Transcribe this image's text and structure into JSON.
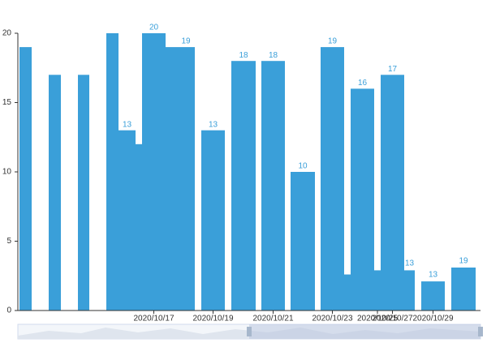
{
  "chart_data": {
    "type": "bar",
    "color": "#3a9fd9",
    "categories": [
      null,
      null,
      null,
      null,
      null,
      null,
      "2020/10/17",
      null,
      null,
      "2020/10/19",
      null,
      "2020/10/21",
      null,
      "2020/10/23",
      null,
      null,
      "2020/10/25",
      "2020/10/27",
      null,
      "2020/10/29",
      null
    ],
    "values": [
      19,
      17,
      17,
      20,
      13,
      12,
      20,
      19,
      19,
      13,
      18,
      18,
      10,
      19,
      2.6,
      16,
      2.9,
      17,
      2.9,
      2.1,
      3.1
    ],
    "value_labels": [
      null,
      null,
      null,
      null,
      "13",
      null,
      "20",
      null,
      "19",
      "13",
      "18",
      "18",
      "10",
      "19",
      null,
      "16",
      null,
      "17",
      null,
      null,
      null
    ],
    "annotations": [
      {
        "text": "13"
      },
      {
        "text": "13"
      },
      {
        "text": "19"
      }
    ],
    "ylim": [
      0,
      20
    ],
    "yticks": [
      0,
      5,
      10,
      15,
      20
    ]
  }
}
